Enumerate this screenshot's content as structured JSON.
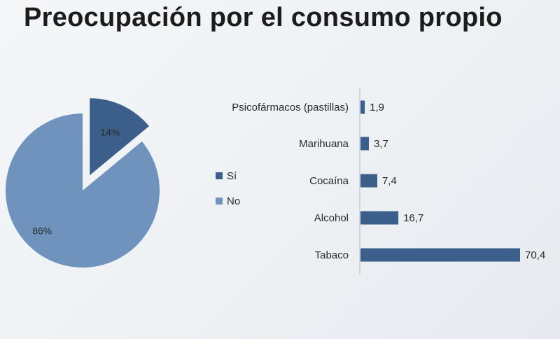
{
  "title": "Preocupación por el consumo propio",
  "colors": {
    "si": "#3b5f8a",
    "no": "#6f93bd",
    "bar": "#3b5f8a",
    "text": "#2a2a2a"
  },
  "chart_data": [
    {
      "type": "pie",
      "title": "",
      "legend_placement": "right",
      "slices": [
        {
          "label": "Sí",
          "value": 14,
          "display": "14%",
          "color": "#3b5f8a"
        },
        {
          "label": "No",
          "value": 86,
          "display": "86%",
          "color": "#6f93bd"
        }
      ],
      "legend": [
        "Sí",
        "No"
      ]
    },
    {
      "type": "bar",
      "orientation": "horizontal",
      "title": "",
      "xlabel": "",
      "ylabel": "",
      "xlim": [
        0,
        70.4
      ],
      "grid": false,
      "categories": [
        "Psicofármacos (pastillas)",
        "Marihuana",
        "Cocaína",
        "Alcohol",
        "Tabaco"
      ],
      "values": [
        1.9,
        3.7,
        7.4,
        16.7,
        70.4
      ],
      "value_labels": [
        "1,9",
        "3,7",
        "7,4",
        "16,7",
        "70,4"
      ]
    }
  ]
}
